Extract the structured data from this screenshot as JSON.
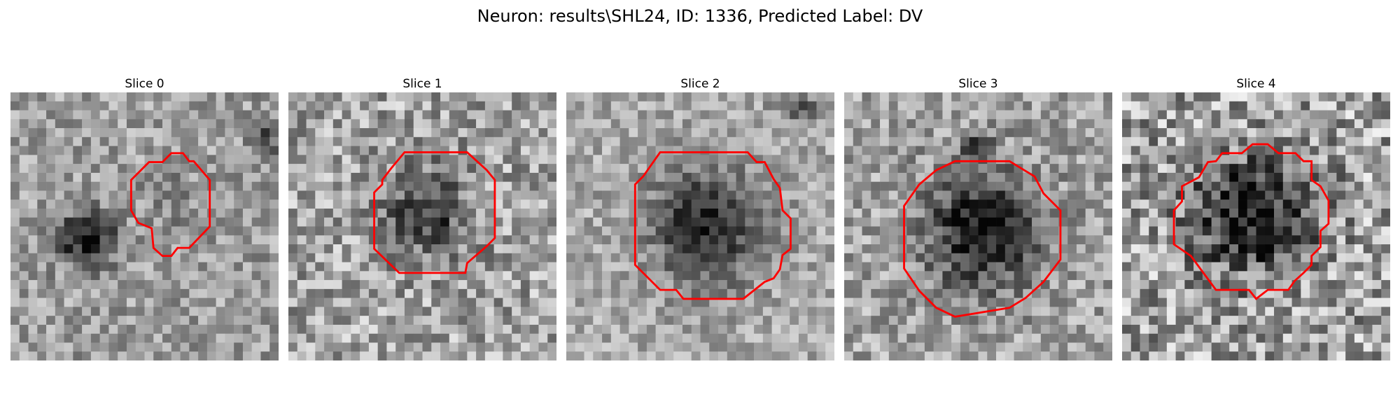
{
  "figure": {
    "title": "Neuron: results\\SHL24, ID: 1336, Predicted Label: DV"
  },
  "slices": [
    {
      "label": "Slice 0"
    },
    {
      "label": "Slice 1"
    },
    {
      "label": "Slice 2"
    },
    {
      "label": "Slice 3"
    },
    {
      "label": "Slice 4"
    }
  ],
  "colors": {
    "contour": "#ff0000",
    "background": "#ffffff"
  }
}
